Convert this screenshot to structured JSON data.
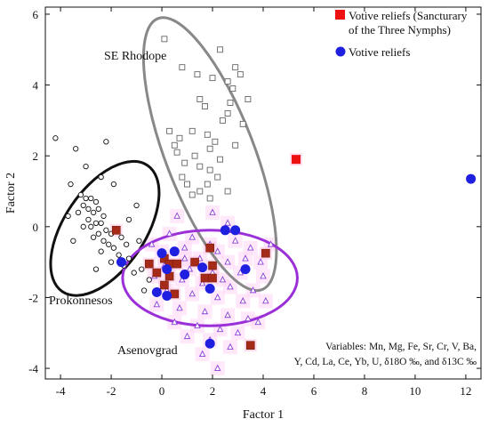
{
  "chart_data": {
    "type": "scatter",
    "xlabel": "Factor 1",
    "ylabel": "Factor 2",
    "xlim": [
      -4.6,
      12.6
    ],
    "ylim": [
      -4.3,
      6.2
    ],
    "x_ticks": [
      "-4",
      "-2",
      "0",
      "2",
      "4",
      "6",
      "8",
      "10",
      "12"
    ],
    "y_ticks": [
      "-4",
      "-2",
      "0",
      "2",
      "4",
      "6"
    ],
    "grid": false,
    "legend_position": "top-right",
    "legend": [
      {
        "label_line1": "Votive reliefs (Sancturary",
        "label_line2": "of the Three Nymphs)",
        "marker": "filled-square",
        "color": "#ee1111"
      },
      {
        "label_line1": "Votive reliefs",
        "label_line2": "",
        "marker": "filled-circle",
        "color": "#1f1fe0"
      }
    ],
    "group_labels": {
      "rhodope": "SE Rhodope",
      "prokonnesos": "Prokonnesos",
      "asenovgrad": "Asenovgrad"
    },
    "note": {
      "line1": "Variables: Mn, Mg, Fe, Sr, Cr, V, Ba,",
      "line2": "Y, Cd, La, Ce, Yb, U, δ18O ‰, and δ13C ‰"
    },
    "ellipses": [
      {
        "group": "SE Rhodope",
        "cx": 1.9,
        "cy": 2.05,
        "rx": 1.75,
        "ry": 4.1,
        "rotation_deg": -21,
        "color": "#888888"
      },
      {
        "group": "Prokonnesos",
        "cx": -2.25,
        "cy": -0.05,
        "rx": 1.6,
        "ry": 2.15,
        "rotation_deg": 34,
        "color": "#111111"
      },
      {
        "group": "Asenovgrad",
        "cx": 1.9,
        "cy": -1.45,
        "rx": 3.45,
        "ry": 1.35,
        "rotation_deg": 0,
        "color": "#9b30d9"
      }
    ],
    "series": [
      {
        "group": "SE Rhodope",
        "marker": "open-square",
        "color": "#666666",
        "points": [
          [
            0.1,
            5.3
          ],
          [
            2.3,
            5.0
          ],
          [
            0.8,
            4.5
          ],
          [
            1.4,
            4.3
          ],
          [
            2.0,
            4.2
          ],
          [
            2.6,
            4.1
          ],
          [
            2.8,
            3.9
          ],
          [
            1.5,
            3.6
          ],
          [
            1.7,
            3.4
          ],
          [
            2.6,
            3.2
          ],
          [
            2.4,
            3.0
          ],
          [
            3.2,
            2.9
          ],
          [
            0.3,
            2.7
          ],
          [
            1.2,
            2.7
          ],
          [
            1.8,
            2.6
          ],
          [
            0.7,
            2.5
          ],
          [
            2.1,
            2.4
          ],
          [
            0.5,
            2.3
          ],
          [
            2.9,
            2.3
          ],
          [
            1.9,
            2.2
          ],
          [
            0.6,
            2.1
          ],
          [
            1.3,
            2.0
          ],
          [
            2.3,
            1.9
          ],
          [
            0.9,
            1.8
          ],
          [
            1.5,
            1.7
          ],
          [
            1.9,
            1.6
          ],
          [
            0.8,
            1.4
          ],
          [
            2.2,
            1.4
          ],
          [
            1.0,
            1.2
          ],
          [
            1.8,
            1.2
          ],
          [
            1.5,
            1.0
          ],
          [
            2.6,
            1.0
          ],
          [
            1.2,
            0.9
          ],
          [
            1.9,
            0.8
          ],
          [
            2.7,
            3.5
          ],
          [
            3.4,
            3.6
          ],
          [
            3.1,
            4.3
          ],
          [
            2.9,
            4.5
          ]
        ]
      },
      {
        "group": "Prokonnesos",
        "marker": "open-circle",
        "color": "#111111",
        "points": [
          [
            -4.2,
            2.5
          ],
          [
            -3.4,
            2.2
          ],
          [
            -2.2,
            2.4
          ],
          [
            -3.0,
            1.7
          ],
          [
            -3.6,
            1.2
          ],
          [
            -2.4,
            1.4
          ],
          [
            -1.9,
            1.2
          ],
          [
            -3.2,
            0.9
          ],
          [
            -3.0,
            0.8
          ],
          [
            -2.8,
            0.8
          ],
          [
            -2.6,
            0.7
          ],
          [
            -3.1,
            0.6
          ],
          [
            -2.9,
            0.5
          ],
          [
            -2.7,
            0.4
          ],
          [
            -2.5,
            0.5
          ],
          [
            -3.3,
            0.4
          ],
          [
            -2.3,
            0.3
          ],
          [
            -2.9,
            0.2
          ],
          [
            -2.6,
            0.1
          ],
          [
            -2.4,
            0.1
          ],
          [
            -3.1,
            0.0
          ],
          [
            -2.8,
            0.0
          ],
          [
            -2.2,
            -0.1
          ],
          [
            -2.5,
            -0.2
          ],
          [
            -2.0,
            -0.2
          ],
          [
            -1.8,
            -0.1
          ],
          [
            -2.7,
            -0.3
          ],
          [
            -2.3,
            -0.4
          ],
          [
            -1.6,
            -0.3
          ],
          [
            -2.1,
            -0.5
          ],
          [
            -1.9,
            -0.6
          ],
          [
            -1.4,
            -0.5
          ],
          [
            -2.4,
            -0.7
          ],
          [
            -1.7,
            -0.8
          ],
          [
            -1.3,
            -0.9
          ],
          [
            -2.0,
            -1.0
          ],
          [
            -1.5,
            -1.1
          ],
          [
            -1.1,
            -1.3
          ],
          [
            -0.8,
            -1.2
          ],
          [
            -0.5,
            -1.5
          ],
          [
            -0.7,
            -1.8
          ],
          [
            -1.0,
            0.6
          ],
          [
            -1.3,
            0.2
          ],
          [
            -0.9,
            -0.4
          ],
          [
            -3.7,
            0.3
          ],
          [
            -3.5,
            -0.4
          ],
          [
            -2.6,
            -1.2
          ]
        ]
      },
      {
        "group": "Asenovgrad",
        "marker": "open-triangle",
        "color": "#8a3fd6",
        "points": [
          [
            2.0,
            0.4
          ],
          [
            0.6,
            0.3
          ],
          [
            2.6,
            0.1
          ],
          [
            0.3,
            -0.2
          ],
          [
            1.2,
            -0.3
          ],
          [
            2.9,
            -0.4
          ],
          [
            -0.4,
            -0.5
          ],
          [
            0.9,
            -0.6
          ],
          [
            2.2,
            -0.7
          ],
          [
            3.5,
            -0.6
          ],
          [
            4.3,
            -0.5
          ],
          [
            1.5,
            -0.9
          ],
          [
            2.6,
            -1.0
          ],
          [
            3.9,
            -1.0
          ],
          [
            0.1,
            -1.1
          ],
          [
            1.1,
            -1.2
          ],
          [
            2.0,
            -1.3
          ],
          [
            3.1,
            -1.3
          ],
          [
            4.0,
            -1.4
          ],
          [
            -0.3,
            -1.4
          ],
          [
            0.8,
            -1.5
          ],
          [
            1.6,
            -1.6
          ],
          [
            2.7,
            -1.7
          ],
          [
            3.6,
            -1.8
          ],
          [
            0.2,
            -1.8
          ],
          [
            1.2,
            -1.9
          ],
          [
            2.2,
            -2.0
          ],
          [
            3.2,
            -2.1
          ],
          [
            4.1,
            -2.1
          ],
          [
            -0.2,
            -2.2
          ],
          [
            0.7,
            -2.3
          ],
          [
            1.7,
            -2.4
          ],
          [
            2.6,
            -2.5
          ],
          [
            3.4,
            -2.6
          ],
          [
            0.5,
            -2.7
          ],
          [
            1.4,
            -2.8
          ],
          [
            2.3,
            -2.9
          ],
          [
            3.0,
            -3.0
          ],
          [
            1.0,
            -3.1
          ],
          [
            1.9,
            -3.2
          ],
          [
            2.7,
            -3.4
          ],
          [
            3.8,
            -2.7
          ],
          [
            1.6,
            -3.6
          ],
          [
            0.9,
            -0.9
          ],
          [
            2.4,
            -1.5
          ],
          [
            3.3,
            -0.9
          ],
          [
            0.0,
            -0.7
          ],
          [
            1.9,
            -0.5
          ],
          [
            2.2,
            -4.0
          ]
        ]
      },
      {
        "group": "Votive reliefs (Sancturary of the Three Nymphs)",
        "marker": "filled-square",
        "color": "#ee1111",
        "points": [
          [
            -1.8,
            -0.1
          ],
          [
            -0.5,
            -1.05
          ],
          [
            -0.2,
            -1.3
          ],
          [
            0.1,
            -0.9
          ],
          [
            0.3,
            -1.05
          ],
          [
            0.6,
            -1.05
          ],
          [
            0.3,
            -1.4
          ],
          [
            0.1,
            -1.65
          ],
          [
            0.5,
            -1.9
          ],
          [
            1.3,
            -1.0
          ],
          [
            1.9,
            -0.6
          ],
          [
            1.7,
            -1.45
          ],
          [
            2.0,
            -1.45
          ],
          [
            2.0,
            -1.1
          ],
          [
            4.1,
            -0.75
          ],
          [
            3.5,
            -3.35
          ],
          [
            5.3,
            1.9
          ]
        ]
      },
      {
        "group": "Votive reliefs",
        "marker": "filled-circle",
        "color": "#1f1fe0",
        "points": [
          [
            -1.6,
            -1.0
          ],
          [
            0.0,
            -0.75
          ],
          [
            0.5,
            -0.7
          ],
          [
            0.9,
            -1.35
          ],
          [
            0.2,
            -1.2
          ],
          [
            -0.2,
            -1.85
          ],
          [
            0.2,
            -1.95
          ],
          [
            1.6,
            -1.15
          ],
          [
            1.9,
            -1.75
          ],
          [
            2.5,
            -0.1
          ],
          [
            2.9,
            -0.1
          ],
          [
            3.3,
            -1.2
          ],
          [
            1.9,
            -3.3
          ],
          [
            12.2,
            1.35
          ]
        ]
      }
    ]
  }
}
